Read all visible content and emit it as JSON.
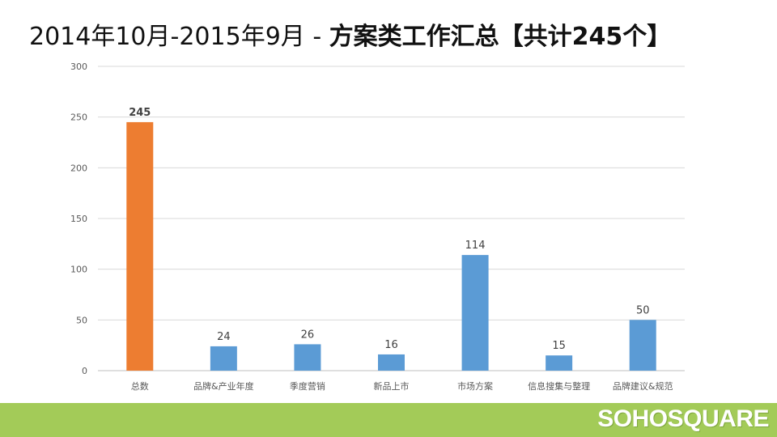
{
  "title": {
    "prefix": "2014年10月-2015年9月 - ",
    "bold": "方案类工作汇总【共计245个】"
  },
  "logo": "SOHOSQUARE",
  "colors": {
    "highlight": "#ed7d31",
    "bar": "#5b9bd5",
    "footer": "#a3cb58",
    "grid": "#d9d9d9"
  },
  "chart_data": {
    "type": "bar",
    "title": "",
    "xlabel": "",
    "ylabel": "",
    "ylim": [
      0,
      300
    ],
    "yticks": [
      0,
      50,
      100,
      150,
      200,
      250,
      300
    ],
    "grid": true,
    "categories": [
      "总数",
      "品牌&产业年度",
      "季度营销",
      "新品上市",
      "市场方案",
      "信息搜集与整理",
      "品牌建议&规范"
    ],
    "values": [
      245,
      24,
      26,
      16,
      114,
      15,
      50
    ],
    "bar_colors": [
      "#ed7d31",
      "#5b9bd5",
      "#5b9bd5",
      "#5b9bd5",
      "#5b9bd5",
      "#5b9bd5",
      "#5b9bd5"
    ]
  }
}
